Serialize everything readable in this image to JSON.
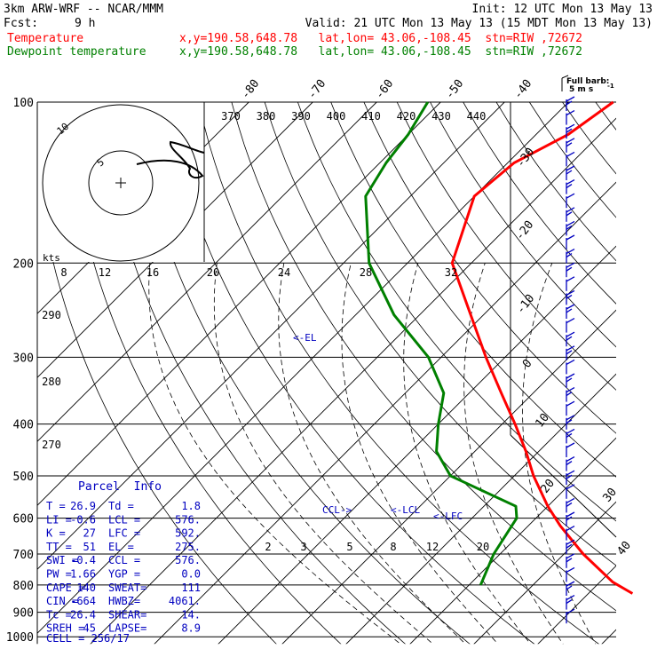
{
  "header": {
    "model": "3km ARW-WRF -- NCAR/MMM",
    "init": "Init: 12 UTC Mon 13 May 13",
    "fcst_label": "Fcst:",
    "fcst_value": "9 h",
    "valid": "Valid: 21 UTC Mon 13 May 13 (15 MDT Mon 13 May 13)",
    "temp_label": "Temperature",
    "dew_label": "Dewpoint temperature",
    "temp_coord": "x,y=190.58,648.78   lat,lon= 43.06,-108.45  stn=RIW ,72672",
    "dew_coord": "x,y=190.58,648.78   lat,lon= 43.06,-108.45  stn=RIW ,72672",
    "barb_label_1": "Full barb:",
    "barb_label_2": "5 m s",
    "barb_label_3": "-1"
  },
  "colors": {
    "temperature": "#ff0000",
    "dewpoint": "#008000",
    "parcel_text": "#0000c0",
    "barbs": "#0000c0"
  },
  "hodograph": {
    "rings": [
      "5",
      "10"
    ],
    "kts_label": "kts"
  },
  "parcel_info": {
    "title": "Parcel  Info",
    "rows": [
      {
        "l": "T   =",
        "lv": "26.9",
        "r": "Td  =",
        "rv": "1.8"
      },
      {
        "l": "LI  =",
        "lv": "-0.6",
        "r": "LCL =",
        "rv": "576."
      },
      {
        "l": "K   =",
        "lv": "27",
        "r": "LFC =",
        "rv": "592."
      },
      {
        "l": "TT  =",
        "lv": "51",
        "r": "EL  =",
        "rv": "275."
      },
      {
        "l": "SWI =",
        "lv": "-0.4",
        "r": "CCL =",
        "rv": "576."
      },
      {
        "l": "PW  =",
        "lv": "1.66",
        "r": "YGP =",
        "rv": "0.0"
      },
      {
        "l": "CAPE =",
        "lv": "140",
        "r": "SWEAT=",
        "rv": "111"
      },
      {
        "l": "CIN =",
        "lv": "-664",
        "r": "HWBZ=",
        "rv": "4061."
      },
      {
        "l": "Tc  =",
        "lv": "26.4",
        "r": "SHEAR=",
        "rv": "14."
      },
      {
        "l": "SREH =",
        "lv": "45",
        "r": "LAPSE=",
        "rv": "8.9"
      }
    ],
    "cell": "CELL = 256/17"
  },
  "annotations": {
    "el": "<-EL",
    "ccl": "CCL->",
    "lcl": "<-LCL",
    "lfc": "<-LFC"
  },
  "chart_data": {
    "type": "line",
    "title": "",
    "xlabel": "",
    "ylabel": "",
    "y_scale": "log (pressure, skew-T)",
    "pressure_ticks": [
      100,
      200,
      300,
      400,
      500,
      600,
      700,
      800,
      900,
      1000
    ],
    "top_temp_ticks": [
      "-80",
      "-70",
      "-60",
      "-50",
      "-40"
    ],
    "right_temp_ticks": [
      "-30",
      "-20",
      "-10",
      "0",
      "10",
      "20",
      "30",
      "40"
    ],
    "theta_labels": [
      "370",
      "380",
      "390",
      "400",
      "410",
      "420",
      "430",
      "440"
    ],
    "theta_left_labels": [
      "290",
      "280",
      "270"
    ],
    "mixing_ratio_top": [
      "8",
      "12",
      "16",
      "20",
      "24",
      "28",
      "32"
    ],
    "mixing_ratio_bottom": [
      "2",
      "3",
      "5",
      "8",
      "12",
      "20"
    ],
    "series": [
      {
        "name": "Temperature",
        "points": [
          [
            830,
            26.9
          ],
          [
            790,
            22
          ],
          [
            700,
            13
          ],
          [
            620,
            5
          ],
          [
            570,
            0
          ],
          [
            500,
            -7
          ],
          [
            450,
            -12
          ],
          [
            400,
            -18
          ],
          [
            350,
            -25
          ],
          [
            300,
            -33
          ],
          [
            250,
            -42
          ],
          [
            200,
            -53
          ],
          [
            150,
            -60
          ],
          [
            130,
            -59
          ],
          [
            115,
            -55
          ],
          [
            100,
            -53
          ]
        ]
      },
      {
        "name": "Dewpoint temperature",
        "points": [
          [
            800,
            1.8
          ],
          [
            700,
            -1
          ],
          [
            600,
            -3
          ],
          [
            570,
            -5
          ],
          [
            500,
            -20
          ],
          [
            450,
            -26
          ],
          [
            400,
            -30
          ],
          [
            350,
            -34
          ],
          [
            300,
            -42
          ],
          [
            250,
            -54
          ],
          [
            200,
            -66
          ],
          [
            150,
            -77
          ],
          [
            130,
            -79
          ],
          [
            115,
            -80
          ],
          [
            100,
            -82
          ]
        ]
      }
    ]
  }
}
